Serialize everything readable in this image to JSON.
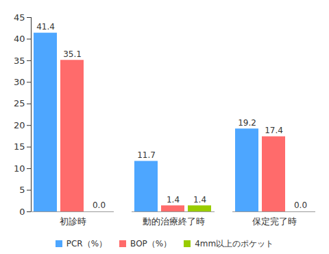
{
  "chart_data": {
    "type": "bar",
    "categories": [
      "初診時",
      "動的治療終了時",
      "保定完了時"
    ],
    "series": [
      {
        "name": "PCR（%）",
        "color": "#4da6ff",
        "values": [
          41.4,
          11.7,
          19.2
        ],
        "value_labels": [
          "41.4",
          "11.7",
          "19.2"
        ]
      },
      {
        "name": "BOP（%）",
        "color": "#ff6b6b",
        "values": [
          35.1,
          1.4,
          17.4
        ],
        "value_labels": [
          "35.1",
          "1.4",
          "17.4"
        ]
      },
      {
        "name": "4mm以上のポケット",
        "color": "#99cc00",
        "values": [
          0.0,
          1.4,
          0.0
        ],
        "value_labels": [
          "0.0",
          "1.4",
          "0.0"
        ]
      }
    ],
    "ylim": [
      0,
      45
    ],
    "yticks": [
      0,
      5,
      10,
      15,
      20,
      25,
      30,
      35,
      40,
      45
    ],
    "grid": false,
    "data_labels": true,
    "legend": "bottom"
  }
}
